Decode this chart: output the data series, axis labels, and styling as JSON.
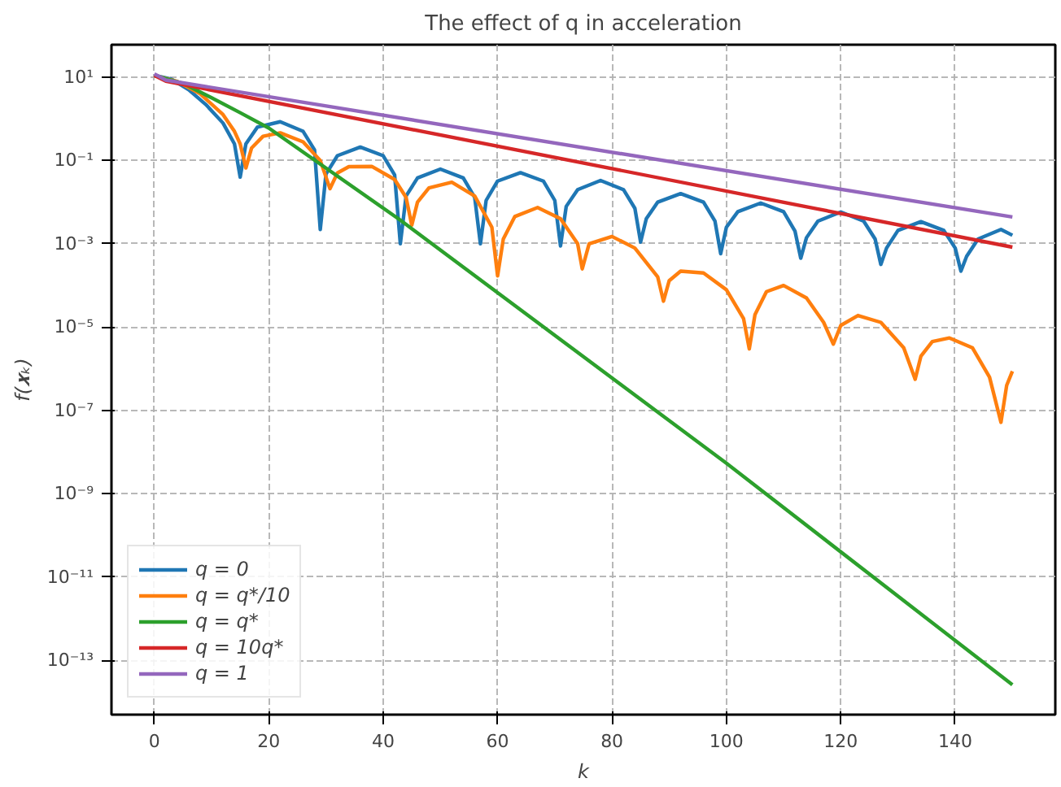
{
  "chart_data": {
    "type": "line",
    "title": "The effect of q in acceleration",
    "xlabel": "k",
    "ylabel": "f(𝒙ₖ)",
    "log": "y",
    "grid": true,
    "legend": "bottom left",
    "line_style": "solid",
    "xlim": [
      -7.5,
      157.5
    ],
    "xticks": [
      0,
      20,
      40,
      60,
      80,
      100,
      120,
      140
    ],
    "ylim": [
      5e-15,
      60
    ],
    "yticks": [
      {
        "value": 10,
        "label": "10¹"
      },
      {
        "value": 0.1,
        "label": "10⁻¹"
      },
      {
        "value": 0.001,
        "label": "10⁻³"
      },
      {
        "value": 1e-05,
        "label": "10⁻⁵"
      },
      {
        "value": 1e-07,
        "label": "10⁻⁷"
      },
      {
        "value": 1e-09,
        "label": "10⁻⁹"
      },
      {
        "value": 1e-11,
        "label": "10⁻¹¹"
      },
      {
        "value": 1e-13,
        "label": "10⁻¹³"
      }
    ],
    "series": [
      {
        "name": "q = 0",
        "color": "#1f77b4",
        "x": [
          0,
          3,
          6,
          9,
          12,
          14,
          15,
          16,
          18,
          22,
          26,
          28,
          29,
          30,
          32,
          36,
          40,
          42,
          43,
          44,
          46,
          50,
          54,
          56,
          57,
          58,
          60,
          64,
          68,
          70,
          71,
          72,
          74,
          78,
          82,
          84,
          85,
          86,
          88,
          92,
          96,
          98,
          99,
          100,
          102,
          106,
          110,
          112,
          113,
          114,
          116,
          120,
          124,
          126,
          127,
          128,
          130,
          134,
          138,
          140,
          141,
          142,
          144,
          148,
          150
        ],
        "values": [
          11,
          8.9,
          5.0,
          2.2,
          0.79,
          0.25,
          0.04,
          0.25,
          0.63,
          0.85,
          0.5,
          0.18,
          0.0022,
          0.047,
          0.13,
          0.21,
          0.13,
          0.045,
          0.001,
          0.014,
          0.038,
          0.062,
          0.038,
          0.013,
          0.001,
          0.011,
          0.032,
          0.051,
          0.032,
          0.011,
          0.00089,
          0.0079,
          0.02,
          0.033,
          0.02,
          0.0071,
          0.0011,
          0.004,
          0.01,
          0.016,
          0.01,
          0.0035,
          0.00058,
          0.0025,
          0.0059,
          0.0095,
          0.0059,
          0.002,
          0.00045,
          0.0014,
          0.0035,
          0.0058,
          0.0035,
          0.0013,
          0.00032,
          0.00079,
          0.0021,
          0.0034,
          0.0021,
          0.00079,
          0.00022,
          0.0005,
          0.0013,
          0.0022,
          0.0016
        ]
      },
      {
        "name": "q = q*/10",
        "color": "#ff7f0e",
        "x": [
          0,
          4,
          8,
          12,
          14,
          15,
          16,
          17,
          19,
          22,
          26,
          29,
          30.7,
          32,
          34,
          38,
          42,
          44,
          45,
          46,
          48,
          52,
          56,
          59,
          60,
          61,
          63,
          67,
          71,
          74,
          74.8,
          76,
          80,
          84,
          88,
          89,
          90,
          92,
          96,
          100,
          103,
          104,
          105,
          107,
          110,
          114,
          117,
          118.7,
          120,
          123,
          127,
          131,
          133,
          134,
          136,
          139,
          143,
          146,
          148,
          149,
          150
        ],
        "values": [
          11,
          7.9,
          4.0,
          1.26,
          0.5,
          0.25,
          0.066,
          0.2,
          0.38,
          0.46,
          0.28,
          0.1,
          0.021,
          0.05,
          0.071,
          0.072,
          0.035,
          0.013,
          0.0028,
          0.01,
          0.022,
          0.03,
          0.014,
          0.0025,
          0.00017,
          0.0013,
          0.0045,
          0.0074,
          0.004,
          0.001,
          0.00025,
          0.001,
          0.0015,
          0.00079,
          0.00016,
          4.2e-05,
          0.00013,
          0.00022,
          0.0002,
          7.9e-05,
          1.6e-05,
          3e-06,
          2e-05,
          7.1e-05,
          0.0001,
          5e-05,
          1.3e-05,
          3.9e-06,
          1.1e-05,
          1.9e-05,
          1.3e-05,
          3.2e-06,
          5.6e-07,
          2e-06,
          4.5e-06,
          5.5e-06,
          3.2e-06,
          6.3e-07,
          5.2e-08,
          4e-07,
          8.7e-07
        ]
      },
      {
        "name": "q = q*",
        "color": "#2ca02c",
        "x": [
          0,
          5,
          10,
          15,
          20,
          43,
          100,
          150
        ],
        "values": [
          11,
          7.1,
          3.2,
          1.4,
          0.6,
          0.0037,
          5.4e-09,
          2.6e-14
        ]
      },
      {
        "name": "q = 10q*",
        "color": "#d62728",
        "x": [
          0,
          2,
          150
        ],
        "values": [
          11,
          8,
          0.00083
        ]
      },
      {
        "name": "q = 1",
        "color": "#9467bd",
        "x": [
          0,
          2,
          150
        ],
        "values": [
          12,
          8.5,
          0.0044
        ]
      }
    ]
  }
}
